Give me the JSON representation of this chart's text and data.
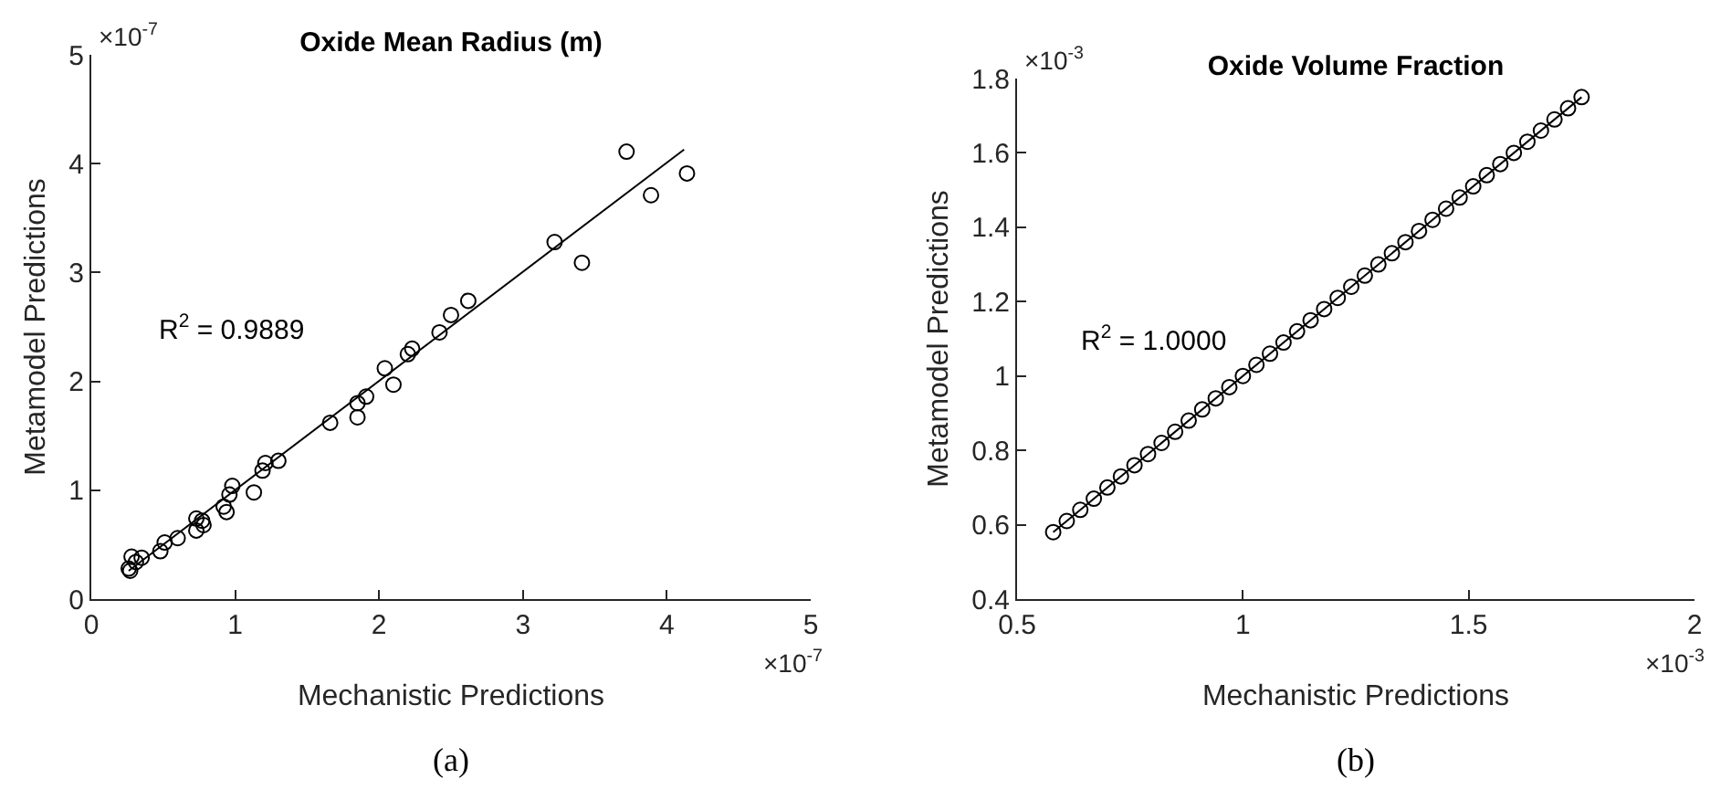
{
  "chart_data": [
    {
      "type": "scatter",
      "title": "Oxide Mean Radius (m)",
      "xlabel": "Mechanistic Predictions",
      "ylabel": "Metamodel Predictions",
      "annotations": [
        "R$^{2}$ = 0.9889",
        "×10$^{-7}$",
        "×10$^{-7}$",
        "(a)"
      ],
      "xlim": [
        0,
        5
      ],
      "xticks": [
        0,
        1,
        2,
        3,
        4,
        5
      ],
      "ylim": [
        0,
        5
      ],
      "yticks": [
        0,
        1,
        2,
        3,
        4,
        5
      ],
      "marker": "circle",
      "series": [
        {
          "type": "scatter",
          "color": "#000000",
          "x": [
            0.26,
            0.28,
            0.27,
            0.31,
            0.35,
            0.48,
            0.51,
            0.6,
            0.73,
            0.73,
            0.77,
            0.78,
            0.92,
            0.94,
            0.96,
            0.98,
            1.13,
            1.19,
            1.21,
            1.3,
            1.66,
            1.85,
            1.85,
            1.91,
            2.04,
            2.1,
            2.2,
            2.23,
            2.42,
            2.5,
            2.62,
            3.22,
            3.41,
            3.72,
            3.89,
            4.14
          ],
          "values": [
            0.28,
            0.39,
            0.26,
            0.34,
            0.38,
            0.44,
            0.52,
            0.56,
            0.74,
            0.63,
            0.72,
            0.68,
            0.85,
            0.8,
            0.96,
            1.04,
            0.98,
            1.18,
            1.25,
            1.27,
            1.62,
            1.8,
            1.67,
            1.86,
            2.12,
            1.97,
            2.25,
            2.3,
            2.45,
            2.61,
            2.74,
            3.28,
            3.09,
            4.11,
            3.71,
            3.91
          ]
        },
        {
          "type": "line",
          "marker": "none",
          "color": "#000000",
          "x": [
            0.26,
            4.12
          ],
          "values": [
            0.26,
            4.13
          ]
        }
      ]
    },
    {
      "type": "scatter",
      "title": "Oxide Volume Fraction",
      "xlabel": "Mechanistic Predictions",
      "ylabel": "Metamodel Predictions",
      "annotations": [
        "R$^{2}$ = 1.0000",
        "×10$^{-3}$",
        "×10$^{-3}$",
        "(b)"
      ],
      "xlim": [
        0.5,
        2
      ],
      "xticks": [
        0.5,
        1,
        1.5,
        2
      ],
      "ylim": [
        0.4,
        1.8
      ],
      "yticks": [
        0.4,
        0.6,
        0.8,
        1,
        1.2,
        1.4,
        1.6,
        1.8
      ],
      "marker": "circle",
      "series": [
        {
          "type": "scatter",
          "color": "#000000",
          "x": [
            0.58,
            0.61,
            0.64,
            0.67,
            0.7,
            0.73,
            0.76,
            0.79,
            0.82,
            0.85,
            0.88,
            0.91,
            0.94,
            0.97,
            1.0,
            1.03,
            1.06,
            1.09,
            1.12,
            1.15,
            1.18,
            1.21,
            1.24,
            1.27,
            1.3,
            1.33,
            1.36,
            1.39,
            1.42,
            1.45,
            1.48,
            1.51,
            1.54,
            1.57,
            1.6,
            1.63,
            1.66,
            1.69,
            1.72,
            1.75
          ],
          "values": [
            0.58,
            0.61,
            0.64,
            0.67,
            0.7,
            0.73,
            0.76,
            0.79,
            0.82,
            0.85,
            0.88,
            0.91,
            0.94,
            0.97,
            1.0,
            1.03,
            1.06,
            1.09,
            1.12,
            1.15,
            1.18,
            1.21,
            1.24,
            1.27,
            1.3,
            1.33,
            1.36,
            1.39,
            1.42,
            1.45,
            1.48,
            1.51,
            1.54,
            1.57,
            1.6,
            1.63,
            1.66,
            1.69,
            1.72,
            1.75
          ]
        },
        {
          "type": "line",
          "marker": "none",
          "color": "#000000",
          "x": [
            0.58,
            1.75
          ],
          "values": [
            0.58,
            1.75
          ]
        }
      ]
    }
  ]
}
